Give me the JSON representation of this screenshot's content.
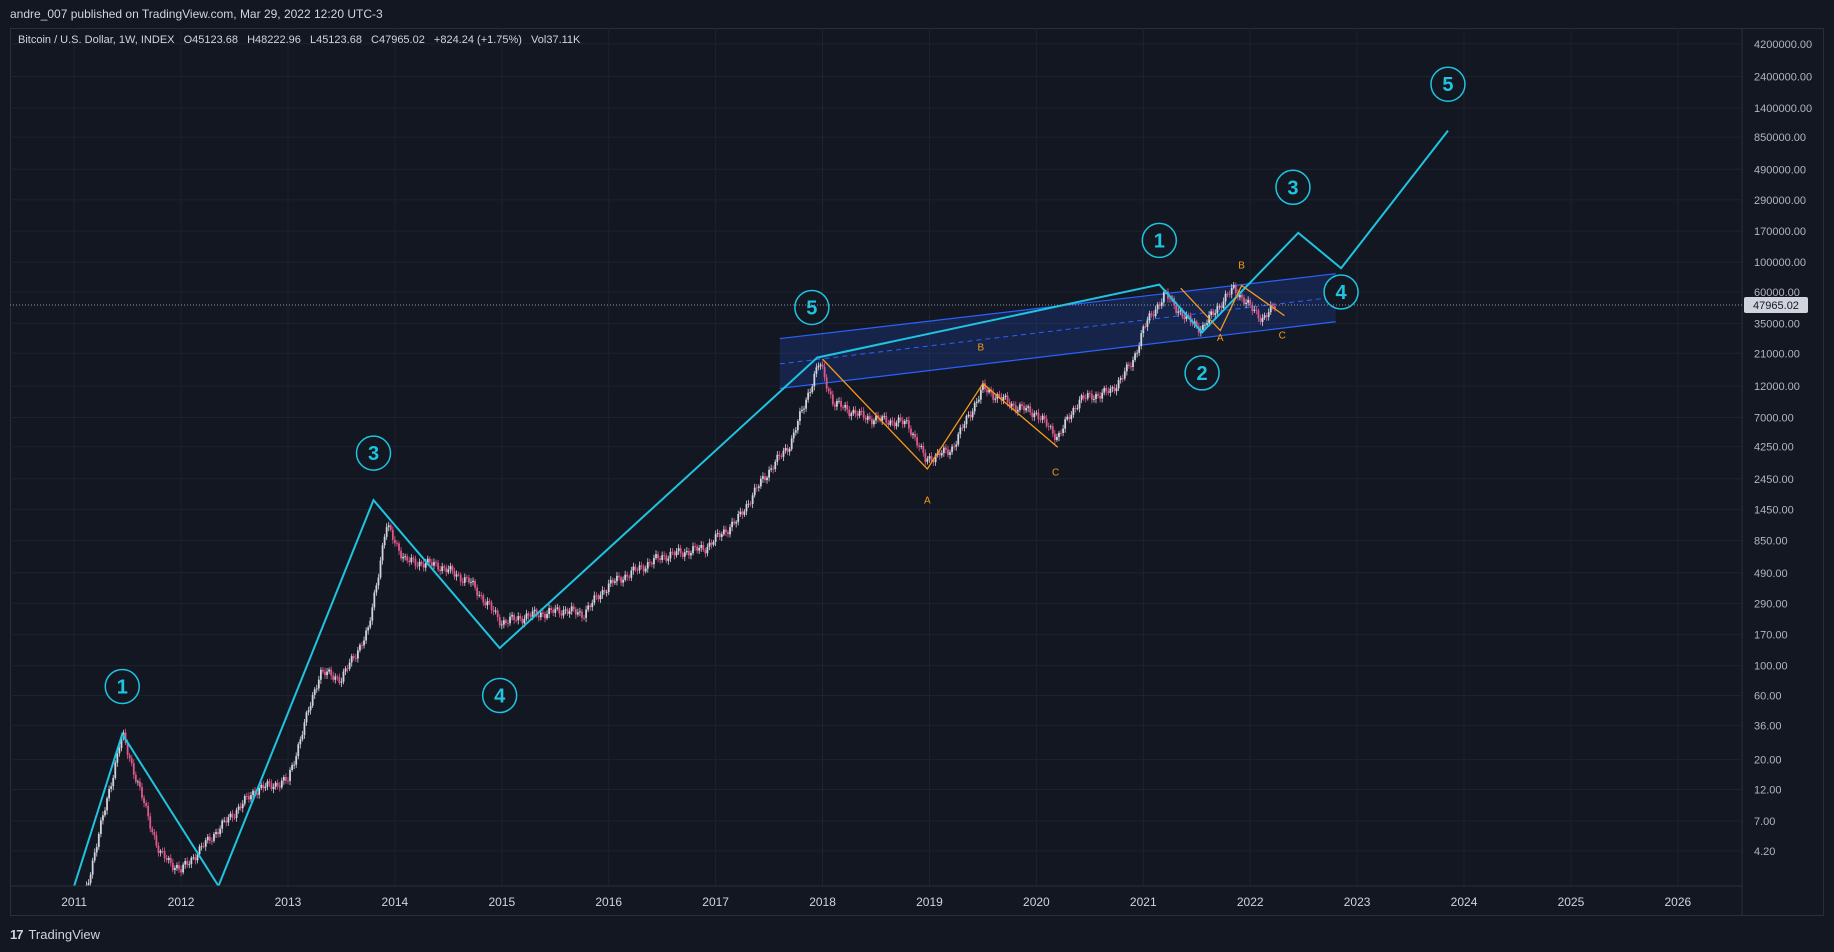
{
  "publisher_line": "andre_007 published on TradingView.com, Mar 29, 2022 12:20 UTC-3",
  "legend": {
    "symbol": "Bitcoin / U.S. Dollar, 1W, INDEX",
    "open": "O45123.68",
    "high": "H48222.96",
    "low": "L45123.68",
    "close": "C47965.02",
    "change": "+824.24 (+1.75%)",
    "volume": "Vol37.11K"
  },
  "footer": {
    "brand": "TradingView",
    "logo_glyph": "17"
  },
  "colors": {
    "background": "#131722",
    "grid": "#1e222d",
    "axis_text": "#b2b5be",
    "elliott_wave": "#1ec4e0",
    "abc_correction": "#f79a1a",
    "channel_line": "#2962ff",
    "channel_fill": "rgba(41,98,255,0.18)",
    "candle_up": "#d1d4dc",
    "candle_down": "#e0578a"
  },
  "chart_data": {
    "type": "candlestick",
    "title": "Bitcoin / U.S. Dollar, 1W, INDEX",
    "y_scale": "log",
    "xlim": [
      2010.4,
      2026.6
    ],
    "ylim": [
      2.3,
      5500000
    ],
    "x_ticks": [
      "2011",
      "2012",
      "2013",
      "2014",
      "2015",
      "2016",
      "2017",
      "2018",
      "2019",
      "2020",
      "2021",
      "2022",
      "2023",
      "2024",
      "2025",
      "2026"
    ],
    "y_ticks": [
      "4200000.00",
      "2400000.00",
      "1400000.00",
      "850000.00",
      "490000.00",
      "290000.00",
      "170000.00",
      "100000.00",
      "60000.00",
      "35000.00",
      "21000.00",
      "12000.00",
      "7000.00",
      "4250.00",
      "2450.00",
      "1450.00",
      "850.00",
      "490.00",
      "290.00",
      "170.00",
      "100.00",
      "60.00",
      "36.00",
      "20.00",
      "12.00",
      "7.00",
      "4.20"
    ],
    "last_price": "47965.02",
    "price_anchors": [
      [
        2011.0,
        0.9
      ],
      [
        2011.45,
        31
      ],
      [
        2011.8,
        4
      ],
      [
        2012.0,
        3
      ],
      [
        2012.3,
        5.5
      ],
      [
        2012.7,
        12
      ],
      [
        2013.0,
        14
      ],
      [
        2013.3,
        90
      ],
      [
        2013.5,
        80
      ],
      [
        2013.75,
        180
      ],
      [
        2013.92,
        1100
      ],
      [
        2014.1,
        600
      ],
      [
        2014.4,
        560
      ],
      [
        2014.7,
        420
      ],
      [
        2015.0,
        210
      ],
      [
        2015.3,
        240
      ],
      [
        2015.6,
        260
      ],
      [
        2015.75,
        240
      ],
      [
        2016.0,
        400
      ],
      [
        2016.5,
        650
      ],
      [
        2016.9,
        750
      ],
      [
        2017.2,
        1200
      ],
      [
        2017.45,
        2500
      ],
      [
        2017.7,
        4500
      ],
      [
        2017.97,
        18000
      ],
      [
        2018.1,
        9000
      ],
      [
        2018.4,
        7000
      ],
      [
        2018.8,
        6300
      ],
      [
        2018.96,
        3400
      ],
      [
        2019.2,
        4000
      ],
      [
        2019.5,
        11500
      ],
      [
        2019.8,
        8500
      ],
      [
        2020.0,
        7500
      ],
      [
        2020.2,
        5000
      ],
      [
        2020.4,
        9500
      ],
      [
        2020.7,
        11000
      ],
      [
        2020.9,
        18000
      ],
      [
        2021.0,
        32000
      ],
      [
        2021.2,
        58000
      ],
      [
        2021.4,
        38000
      ],
      [
        2021.55,
        32000
      ],
      [
        2021.7,
        47000
      ],
      [
        2021.85,
        64000
      ],
      [
        2022.0,
        46000
      ],
      [
        2022.12,
        38000
      ],
      [
        2022.24,
        47965
      ]
    ],
    "elliott_wave_path": [
      [
        2011.0,
        2.3
      ],
      [
        2011.45,
        31
      ],
      [
        2012.35,
        2.3
      ],
      [
        2013.8,
        1700
      ],
      [
        2014.98,
        135
      ],
      [
        2017.95,
        19500
      ],
      [
        2021.15,
        68000
      ],
      [
        2021.55,
        30000
      ],
      [
        2022.45,
        165000
      ],
      [
        2022.85,
        90000
      ],
      [
        2023.85,
        950000
      ]
    ],
    "elliott_labels": [
      {
        "label": "1",
        "x": 2011.45,
        "y": 70
      },
      {
        "label": "3",
        "x": 2013.8,
        "y": 3800
      },
      {
        "label": "4",
        "x": 2014.98,
        "y": 60
      },
      {
        "label": "5",
        "x": 2017.9,
        "y": 46000
      },
      {
        "label": "1",
        "x": 2021.15,
        "y": 145000
      },
      {
        "label": "2",
        "x": 2021.55,
        "y": 15000
      },
      {
        "label": "3",
        "x": 2022.4,
        "y": 360000
      },
      {
        "label": "4",
        "x": 2022.85,
        "y": 60000
      },
      {
        "label": "5",
        "x": 2023.85,
        "y": 2100000
      }
    ],
    "abc_correction_1": [
      [
        2018.0,
        19000
      ],
      [
        2018.98,
        2900
      ],
      [
        2019.5,
        12500
      ],
      [
        2020.2,
        4200
      ]
    ],
    "abc_correction_1_labels": [
      {
        "label": "A",
        "x": 2018.98,
        "y": 1600
      },
      {
        "label": "B",
        "x": 2019.48,
        "y": 22000
      },
      {
        "label": "C",
        "x": 2020.18,
        "y": 2600
      }
    ],
    "abc_correction_2": [
      [
        2021.35,
        64000
      ],
      [
        2021.72,
        31000
      ],
      [
        2021.92,
        67000
      ],
      [
        2022.32,
        40000
      ]
    ],
    "abc_correction_2_labels": [
      {
        "label": "A",
        "x": 2021.72,
        "y": 26000
      },
      {
        "label": "B",
        "x": 2021.92,
        "y": 90000
      },
      {
        "label": "C",
        "x": 2022.3,
        "y": 27000
      }
    ],
    "channel": {
      "upper": [
        [
          2017.6,
          27000
        ],
        [
          2022.8,
          82000
        ]
      ],
      "lower": [
        [
          2017.6,
          11500
        ],
        [
          2022.8,
          36000
        ]
      ],
      "mid": [
        [
          2017.6,
          17500
        ],
        [
          2022.8,
          55000
        ]
      ]
    }
  }
}
